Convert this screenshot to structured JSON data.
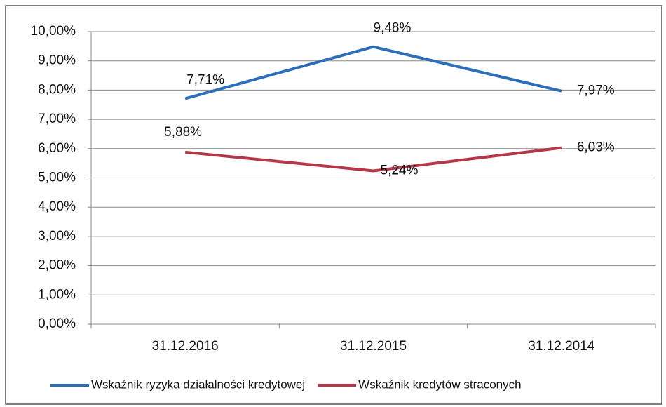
{
  "chart_data": {
    "type": "line",
    "categories": [
      "31.12.2016",
      "31.12.2015",
      "31.12.2014"
    ],
    "series": [
      {
        "name": "Wskaźnik ryzyka działalności kredytowej",
        "color": "#2e6db8",
        "values": [
          7.71,
          9.48,
          7.97
        ],
        "value_labels": [
          "7,71%",
          "9,48%",
          "7,97%"
        ]
      },
      {
        "name": "Wskaźnik kredytów straconych",
        "color": "#b4384a",
        "values": [
          5.88,
          5.24,
          6.03
        ],
        "value_labels": [
          "5,88%",
          "5,24%",
          "6,03%"
        ]
      }
    ],
    "ylim": [
      0,
      10
    ],
    "yticks": [
      {
        "value": 0,
        "label": "0,00%"
      },
      {
        "value": 1,
        "label": "1,00%"
      },
      {
        "value": 2,
        "label": "2,00%"
      },
      {
        "value": 3,
        "label": "3,00%"
      },
      {
        "value": 4,
        "label": "4,00%"
      },
      {
        "value": 5,
        "label": "5,00%"
      },
      {
        "value": 6,
        "label": "6,00%"
      },
      {
        "value": 7,
        "label": "7,00%"
      },
      {
        "value": 8,
        "label": "8,00%"
      },
      {
        "value": 9,
        "label": "9,00%"
      },
      {
        "value": 10,
        "label": "10,00%"
      }
    ],
    "grid": true,
    "legend": "bottom"
  }
}
